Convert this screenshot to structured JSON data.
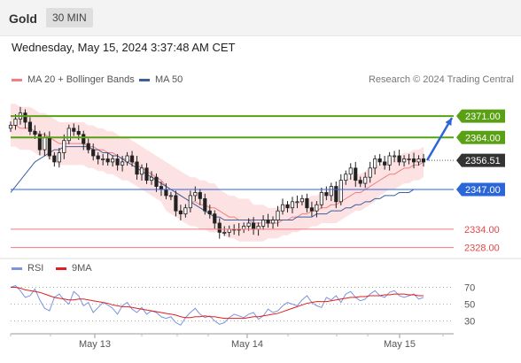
{
  "header": {
    "title": "Gold",
    "timeframe": "30 MIN"
  },
  "datetime": "Wednesday, May 15, 2024 3:37:48 AM CET",
  "legend": {
    "bollinger": {
      "label": "MA 20 + Bollinger Bands",
      "color": "#f08080"
    },
    "ma50": {
      "label": "MA 50",
      "color": "#3f5f9f"
    }
  },
  "watermark": "Research © 2024 Trading Central",
  "rsi_legend": {
    "rsi": {
      "label": "RSI",
      "color": "#7b93e0"
    },
    "ma9": {
      "label": "9MA",
      "color": "#e02020"
    }
  },
  "chart_data": [
    {
      "type": "candlestick",
      "title": "",
      "x_ticks": [
        "May 13",
        "May 14",
        "May 15"
      ],
      "ylim": [
        2325,
        2380
      ],
      "levels": [
        {
          "label": "2371.00",
          "value": 2371.0,
          "color": "#5aa014",
          "style": "resistance"
        },
        {
          "label": "2364.00",
          "value": 2364.0,
          "color": "#5aa014",
          "style": "resistance"
        },
        {
          "label": "2356.51",
          "value": 2356.51,
          "color": "#333333",
          "style": "last price"
        },
        {
          "label": "2347.00",
          "value": 2347.0,
          "color": "#2a66d8",
          "style": "pivot"
        },
        {
          "label": "2334.00",
          "value": 2334.0,
          "color": "#f07a7a",
          "style": "support"
        },
        {
          "label": "2328.00",
          "value": 2328.0,
          "color": "#f07a7a",
          "style": "support"
        }
      ],
      "close": [
        2368,
        2370,
        2372,
        2369,
        2366,
        2365,
        2360,
        2364,
        2358,
        2356,
        2359,
        2363,
        2367,
        2366,
        2365,
        2362,
        2360,
        2358,
        2357,
        2357,
        2356,
        2357,
        2355,
        2356,
        2358,
        2356,
        2352,
        2354,
        2350,
        2351,
        2348,
        2347,
        2345,
        2345,
        2340,
        2339,
        2341,
        2345,
        2346,
        2344,
        2340,
        2339,
        2336,
        2333,
        2333,
        2334,
        2334,
        2334,
        2335,
        2336,
        2334,
        2335,
        2337,
        2336,
        2337,
        2340,
        2342,
        2341,
        2343,
        2343,
        2344,
        2341,
        2340,
        2342,
        2346,
        2345,
        2348,
        2343,
        2350,
        2352,
        2354,
        2350,
        2349,
        2351,
        2354,
        2357,
        2356,
        2355,
        2358,
        2358,
        2356,
        2357,
        2357,
        2356,
        2357,
        2356
      ],
      "ma20": [
        2368,
        2368,
        2367,
        2367,
        2367,
        2366,
        2365,
        2365,
        2364,
        2363,
        2362,
        2362,
        2362,
        2362,
        2362,
        2362,
        2361,
        2361,
        2360,
        2360,
        2359,
        2359,
        2358,
        2357,
        2357,
        2356,
        2355,
        2354,
        2353,
        2352,
        2351,
        2350,
        2348,
        2347,
        2346,
        2345,
        2344,
        2343,
        2343,
        2342,
        2342,
        2341,
        2341,
        2340,
        2339,
        2338,
        2338,
        2337,
        2337,
        2337,
        2336,
        2336,
        2336,
        2336,
        2336,
        2336,
        2337,
        2337,
        2338,
        2338,
        2339,
        2339,
        2340,
        2340,
        2341,
        2341,
        2342,
        2342,
        2343,
        2344,
        2345,
        2346,
        2346,
        2347,
        2348,
        2349,
        2350,
        2351,
        2352,
        2352,
        2353,
        2354,
        2354,
        2355,
        2355,
        2356
      ],
      "ma50": [
        2346,
        2348,
        2350,
        2352,
        2354,
        2356,
        2357,
        2358,
        2359,
        2360,
        2360,
        2361,
        2361,
        2361,
        2361,
        2361,
        2361,
        2360,
        2360,
        2359,
        2359,
        2358,
        2358,
        2357,
        2356,
        2355,
        2354,
        2353,
        2352,
        2351,
        2350,
        2349,
        2348,
        2347,
        2346,
        2345,
        2344,
        2343,
        2342,
        2341,
        2340,
        2339,
        2338,
        2338,
        2337,
        2337,
        2337,
        2337,
        2337,
        2337,
        2337,
        2337,
        2337,
        2337,
        2337,
        2337,
        2337,
        2337,
        2337,
        2338,
        2338,
        2338,
        2338,
        2339,
        2339,
        2339,
        2340,
        2340,
        2340,
        2341,
        2341,
        2342,
        2342,
        2343,
        2343,
        2344,
        2344,
        2345,
        2345,
        2345,
        2346,
        2346,
        2346,
        2347,
        2347,
        2347
      ],
      "band_width": [
        7,
        7,
        7,
        7,
        7,
        7,
        7,
        7,
        7,
        7,
        7,
        7,
        7,
        7,
        7,
        7,
        7,
        7,
        7,
        7,
        7,
        7,
        7,
        7,
        7,
        7,
        7,
        7,
        7,
        7,
        7,
        7,
        8,
        8,
        8,
        8,
        8,
        8,
        8,
        8,
        8,
        8,
        8,
        7,
        7,
        7,
        7,
        7,
        7,
        7,
        6,
        6,
        6,
        5,
        5,
        5,
        5,
        5,
        5,
        5,
        5,
        5,
        5,
        5,
        5,
        5,
        6,
        6,
        6,
        6,
        6,
        6,
        6,
        6,
        6,
        6,
        5,
        5,
        5,
        5,
        5,
        5,
        5,
        5,
        5,
        5
      ],
      "projection": {
        "from": 2356.51,
        "to": 2371.0,
        "color": "#2a66d8"
      }
    },
    {
      "type": "line",
      "title": "",
      "ylim": [
        20,
        80
      ],
      "y_ticks": [
        70,
        50,
        30
      ],
      "series": [
        {
          "name": "RSI",
          "color": "#7b93e0",
          "values": [
            70,
            72,
            66,
            58,
            60,
            68,
            55,
            45,
            42,
            58,
            62,
            55,
            50,
            65,
            60,
            48,
            52,
            40,
            46,
            52,
            49,
            45,
            38,
            48,
            52,
            44,
            40,
            46,
            38,
            42,
            40,
            35,
            33,
            35,
            28,
            25,
            34,
            40,
            45,
            38,
            34,
            36,
            30,
            26,
            28,
            34,
            38,
            36,
            34,
            38,
            40,
            32,
            36,
            44,
            40,
            42,
            48,
            52,
            50,
            48,
            55,
            60,
            52,
            48,
            46,
            58,
            55,
            60,
            52,
            62,
            65,
            58,
            54,
            56,
            62,
            66,
            60,
            58,
            64,
            66,
            60,
            58,
            60,
            62,
            56,
            58
          ]
        },
        {
          "name": "9MA",
          "color": "#e02020",
          "values": [
            70,
            70,
            69,
            67,
            66,
            65,
            64,
            62,
            60,
            58,
            57,
            56,
            55,
            55,
            56,
            56,
            55,
            54,
            53,
            52,
            51,
            49,
            48,
            47,
            47,
            46,
            45,
            44,
            43,
            42,
            41,
            40,
            39,
            38,
            37,
            35,
            34,
            34,
            35,
            35,
            36,
            35,
            35,
            34,
            33,
            33,
            33,
            33,
            33,
            34,
            35,
            35,
            36,
            37,
            38,
            39,
            41,
            43,
            45,
            47,
            49,
            51,
            52,
            53,
            53,
            53,
            54,
            55,
            56,
            57,
            58,
            58,
            59,
            59,
            60,
            60,
            60,
            61,
            61,
            62,
            62,
            62,
            61,
            61,
            60,
            60
          ]
        }
      ]
    }
  ]
}
